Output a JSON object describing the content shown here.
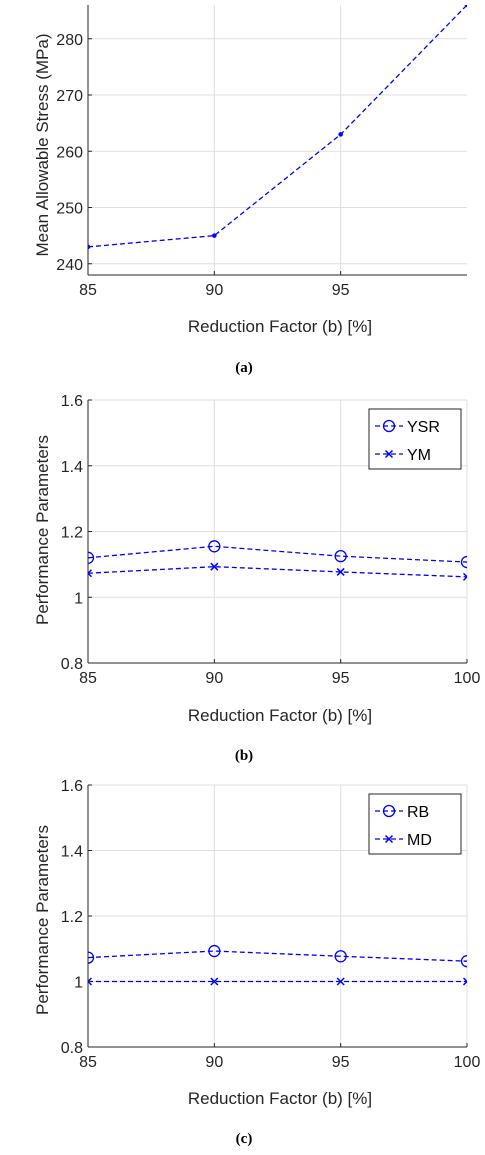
{
  "chart_data": [
    {
      "type": "line",
      "caption": "(a)",
      "xlabel": "Reduction Factor (b) [%]",
      "ylabel": "Mean Allowable Stress (MPa)",
      "xlim": [
        85,
        100
      ],
      "ylim": [
        238,
        286
      ],
      "xticks": [
        85,
        90,
        95
      ],
      "yticks": [
        240,
        250,
        260,
        270,
        280
      ],
      "grid": true,
      "legend": null,
      "color": "#0000ff",
      "series": [
        {
          "x": [
            85,
            90,
            95,
            100
          ],
          "values": [
            243,
            245,
            263,
            286
          ],
          "marker": "dot",
          "linestyle": "dashed"
        }
      ]
    },
    {
      "type": "line",
      "caption": "(b)",
      "xlabel": "Reduction Factor (b) [%]",
      "ylabel": "Performance Parameters",
      "xlim": [
        85,
        100
      ],
      "ylim": [
        0.8,
        1.6
      ],
      "xticks": [
        85,
        90,
        95,
        100
      ],
      "yticks": [
        "0.8",
        "1",
        "1.2",
        "1.4",
        "1.6"
      ],
      "grid": true,
      "legend": "top-right",
      "color": "#0000ff",
      "series": [
        {
          "name": "YSR",
          "x": [
            85,
            90,
            95,
            100
          ],
          "values": [
            1.12,
            1.155,
            1.125,
            1.107
          ],
          "marker": "circle",
          "linestyle": "dashed"
        },
        {
          "name": "YM",
          "x": [
            85,
            90,
            95,
            100
          ],
          "values": [
            1.073,
            1.093,
            1.077,
            1.062
          ],
          "marker": "x",
          "linestyle": "dashed"
        }
      ]
    },
    {
      "type": "line",
      "caption": "(c)",
      "xlabel": "Reduction Factor (b) [%]",
      "ylabel": "Performance Parameters",
      "xlim": [
        85,
        100
      ],
      "ylim": [
        0.8,
        1.6
      ],
      "xticks": [
        85,
        90,
        95,
        100
      ],
      "yticks": [
        "0.8",
        "1",
        "1.2",
        "1.4",
        "1.6"
      ],
      "grid": true,
      "legend": "top-right",
      "color": "#0000ff",
      "series": [
        {
          "name": "RB",
          "x": [
            85,
            90,
            95,
            100
          ],
          "values": [
            1.073,
            1.093,
            1.077,
            1.062
          ],
          "marker": "circle",
          "linestyle": "dashed"
        },
        {
          "name": "MD",
          "x": [
            85,
            90,
            95,
            100
          ],
          "values": [
            1.0,
            1.0,
            1.0,
            1.0
          ],
          "marker": "x",
          "linestyle": "dashed"
        }
      ]
    }
  ]
}
